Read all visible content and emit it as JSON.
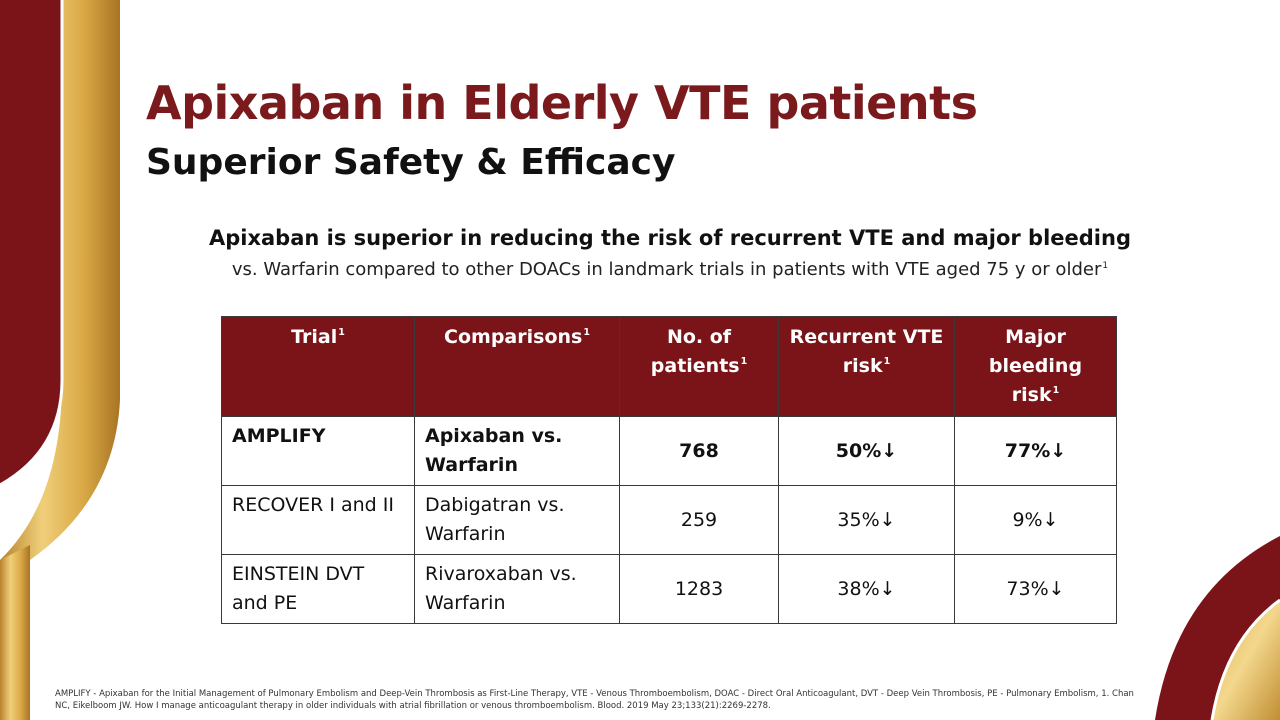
{
  "slide": {
    "title": "Apixaban in Elderly VTE patients",
    "subtitle": "Superior Safety & Efficacy",
    "lead_bold": "Apixaban is superior in reducing the risk of recurrent VTE and major bleeding",
    "lead_text": "vs. Warfarin compared to other DOACs in landmark trials in patients with VTE aged 75 y or older",
    "lead_ref": "1"
  },
  "table": {
    "headers": [
      {
        "label": "Trial",
        "ref": "1"
      },
      {
        "label": "Comparisons",
        "ref": "1"
      },
      {
        "label": "No. of patients",
        "ref": "1"
      },
      {
        "label": "Recurrent VTE risk",
        "ref": "1"
      },
      {
        "label": "Major bleeding risk",
        "ref": "1"
      }
    ],
    "rows": [
      {
        "trial": "AMPLIFY",
        "comparison": "Apixaban vs. Warfarin",
        "patients": "768",
        "vte": "50%↓",
        "bleeding": "77%↓"
      },
      {
        "trial": "RECOVER I and II",
        "comparison": "Dabigatran vs. Warfarin",
        "patients": "259",
        "vte": "35%↓",
        "bleeding": "9%↓"
      },
      {
        "trial": "EINSTEIN DVT and PE",
        "comparison": "Rivaroxaban vs. Warfarin",
        "patients": "1283",
        "vte": "38%↓",
        "bleeding": "73%↓"
      }
    ]
  },
  "footnote": "AMPLIFY - Apixaban for the Initial Management of Pulmonary Embolism and Deep-Vein Thrombosis as First-Line Therapy, VTE - Venous Thromboembolism, DOAC - Direct Oral Anticoagulant, DVT - Deep Vein Thrombosis, PE - Pulmonary Embolism, 1. Chan NC, Eikelboom JW. How I manage anticoagulant therapy in older individuals with atrial fibrillation or venous thromboembolism. Blood. 2019 May 23;133(21):2269-2278.",
  "colors": {
    "brand_maroon": "#7a1418",
    "gold": "#d9a845",
    "title_color": "#7a1a1c"
  }
}
